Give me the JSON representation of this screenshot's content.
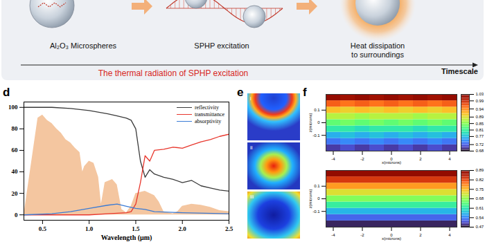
{
  "diagram": {
    "title": "The thermal radiation of SPHP excitation",
    "axis_label": "Timescale",
    "stages": [
      {
        "label": [
          "Al₂O₃ Microspheres"
        ]
      },
      {
        "label": [
          "SPHP excitation"
        ]
      },
      {
        "label": [
          "Heat dissipation",
          "to surroundings"
        ]
      }
    ]
  },
  "field_maps": {
    "panel_label": "e",
    "images": [
      "i",
      "ii",
      "iii"
    ]
  },
  "chart_data": [
    {
      "panel_label": "d",
      "type": "line",
      "xlabel": "Wavelength (μm)",
      "xlim": [
        0.3,
        2.5
      ],
      "xticks": [
        0.5,
        {
          "value": 1,
          "label": "1.0"
        },
        1.5,
        {
          "value": 2,
          "label": "2.0"
        },
        2.5
      ],
      "ylim": [
        -5,
        105
      ],
      "yticks": [
        0,
        20,
        40,
        60,
        80,
        100
      ],
      "legend": "top-right",
      "series": [
        {
          "type": "area",
          "color": "#f4c6a0",
          "x": [
            0.3,
            0.35,
            0.4,
            0.45,
            0.5,
            0.55,
            0.6,
            0.65,
            0.7,
            0.75,
            0.8,
            0.85,
            0.9,
            0.93,
            0.95,
            1.0,
            1.05,
            1.1,
            1.13,
            1.17,
            1.25,
            1.3,
            1.35,
            1.4,
            1.45,
            1.5,
            1.6,
            1.7,
            1.75,
            1.8,
            1.9,
            1.95,
            2.0,
            2.1,
            2.2,
            2.3,
            2.4,
            2.5
          ],
          "values": [
            0,
            30,
            60,
            90,
            93,
            88,
            85,
            80,
            76,
            70,
            67,
            62,
            58,
            40,
            45,
            50,
            48,
            35,
            10,
            30,
            33,
            28,
            5,
            2,
            8,
            20,
            22,
            18,
            12,
            3,
            1,
            3,
            8,
            10,
            9,
            7,
            4,
            3
          ]
        },
        {
          "name": "reflectivity",
          "type": "line",
          "color": "#3a3a3a",
          "x": [
            0.3,
            0.6,
            0.8,
            1.0,
            1.2,
            1.3,
            1.4,
            1.45,
            1.5,
            1.55,
            1.6,
            1.65,
            1.7,
            1.8,
            1.9,
            2.0,
            2.1,
            2.2,
            2.3,
            2.4,
            2.5
          ],
          "values": [
            100,
            100,
            99,
            97,
            94,
            92,
            90,
            88,
            80,
            50,
            35,
            42,
            38,
            35,
            33,
            30,
            32,
            27,
            25,
            23,
            22
          ]
        },
        {
          "name": "transmittance",
          "type": "line",
          "color": "#e8362c",
          "x": [
            0.3,
            0.8,
            1.0,
            1.2,
            1.4,
            1.45,
            1.5,
            1.55,
            1.6,
            1.65,
            1.7,
            1.8,
            1.9,
            2.0,
            2.1,
            2.2,
            2.3,
            2.4,
            2.5
          ],
          "values": [
            0,
            0,
            0,
            1,
            2,
            3,
            10,
            30,
            55,
            50,
            60,
            61,
            63,
            62,
            65,
            68,
            70,
            73,
            75
          ]
        },
        {
          "name": "absorptivity",
          "type": "line",
          "color": "#3a7bd5",
          "x": [
            0.3,
            0.6,
            0.8,
            1.0,
            1.2,
            1.3,
            1.4,
            1.5,
            1.6,
            1.7,
            2.0,
            2.5
          ],
          "values": [
            0,
            1,
            3,
            6,
            9,
            10,
            8,
            6,
            5,
            3,
            2,
            1
          ]
        }
      ]
    },
    {
      "panel_label": "f",
      "type": "heatmap",
      "xlabel": "x(microns)",
      "ylabel": "z(microns)",
      "xlim": [
        -4.5,
        4.5
      ],
      "xticks": [
        -4,
        -2,
        0,
        2,
        4
      ],
      "ylim": [
        -0.225,
        0.225
      ],
      "yticks": [
        -0.1,
        0,
        0.1
      ],
      "x": [
        -4,
        -3,
        -2,
        -1,
        0,
        1,
        2,
        3,
        4
      ],
      "y": [
        -0.2,
        -0.15,
        -0.1,
        -0.05,
        0,
        0.05,
        0.1,
        0.15,
        0.2
      ],
      "values": [
        [
          0.7,
          0.71,
          0.7,
          0.71,
          0.7,
          0.71,
          0.7,
          0.71,
          0.7
        ],
        [
          0.73,
          0.74,
          0.73,
          0.74,
          0.73,
          0.74,
          0.73,
          0.74,
          0.73
        ],
        [
          0.76,
          0.77,
          0.76,
          0.77,
          0.76,
          0.77,
          0.76,
          0.77,
          0.76
        ],
        [
          0.8,
          0.8,
          0.79,
          0.8,
          0.8,
          0.8,
          0.79,
          0.8,
          0.8
        ],
        [
          0.83,
          0.84,
          0.83,
          0.84,
          0.83,
          0.84,
          0.83,
          0.84,
          0.83
        ],
        [
          0.87,
          0.87,
          0.86,
          0.87,
          0.87,
          0.87,
          0.86,
          0.87,
          0.87
        ],
        [
          0.91,
          0.9,
          0.91,
          0.9,
          0.91,
          0.9,
          0.91,
          0.9,
          0.91
        ],
        [
          0.96,
          0.95,
          0.96,
          0.95,
          0.96,
          0.95,
          0.96,
          0.95,
          0.96
        ],
        [
          1.02,
          1.01,
          1.02,
          1.01,
          1.02,
          1.01,
          1.02,
          1.01,
          1.02
        ]
      ],
      "colorbar_range": [
        0.68,
        1.03
      ],
      "colorbar_ticks": [
        1.03,
        0.99,
        0.94,
        0.89,
        0.85,
        0.81,
        0.77,
        0.72,
        0.68
      ]
    },
    {
      "type": "heatmap",
      "xlabel": "x(microns)",
      "ylabel": "z(microns)",
      "xlim": [
        -4.5,
        4.5
      ],
      "xticks": [
        -4,
        -2,
        0,
        2,
        4
      ],
      "ylim": [
        -0.225,
        0.225
      ],
      "yticks": [
        -0.1,
        0,
        0.1
      ],
      "x": [
        -4,
        -3,
        -2,
        -1,
        0,
        1,
        2,
        3,
        4
      ],
      "y": [
        -0.2,
        -0.15,
        -0.1,
        -0.05,
        0,
        0.05,
        0.1,
        0.15,
        0.2
      ],
      "values": [
        [
          0.48,
          0.48,
          0.48,
          0.48,
          0.48,
          0.48,
          0.48,
          0.48,
          0.48
        ],
        [
          0.52,
          0.52,
          0.52,
          0.52,
          0.52,
          0.52,
          0.52,
          0.52,
          0.52
        ],
        [
          0.57,
          0.57,
          0.57,
          0.57,
          0.57,
          0.57,
          0.57,
          0.57,
          0.57
        ],
        [
          0.62,
          0.62,
          0.62,
          0.62,
          0.62,
          0.62,
          0.62,
          0.62,
          0.62
        ],
        [
          0.67,
          0.67,
          0.67,
          0.67,
          0.67,
          0.67,
          0.67,
          0.67,
          0.67
        ],
        [
          0.72,
          0.72,
          0.72,
          0.72,
          0.72,
          0.72,
          0.72,
          0.72,
          0.72
        ],
        [
          0.77,
          0.77,
          0.77,
          0.77,
          0.77,
          0.77,
          0.77,
          0.77,
          0.77
        ],
        [
          0.83,
          0.83,
          0.83,
          0.83,
          0.83,
          0.83,
          0.83,
          0.83,
          0.83
        ],
        [
          0.88,
          0.88,
          0.88,
          0.88,
          0.88,
          0.88,
          0.88,
          0.88,
          0.88
        ]
      ],
      "colorbar_range": [
        0.47,
        0.89
      ],
      "colorbar_ticks": [
        0.89,
        0.82,
        0.75,
        0.68,
        0.61,
        0.54,
        0.47
      ]
    }
  ]
}
